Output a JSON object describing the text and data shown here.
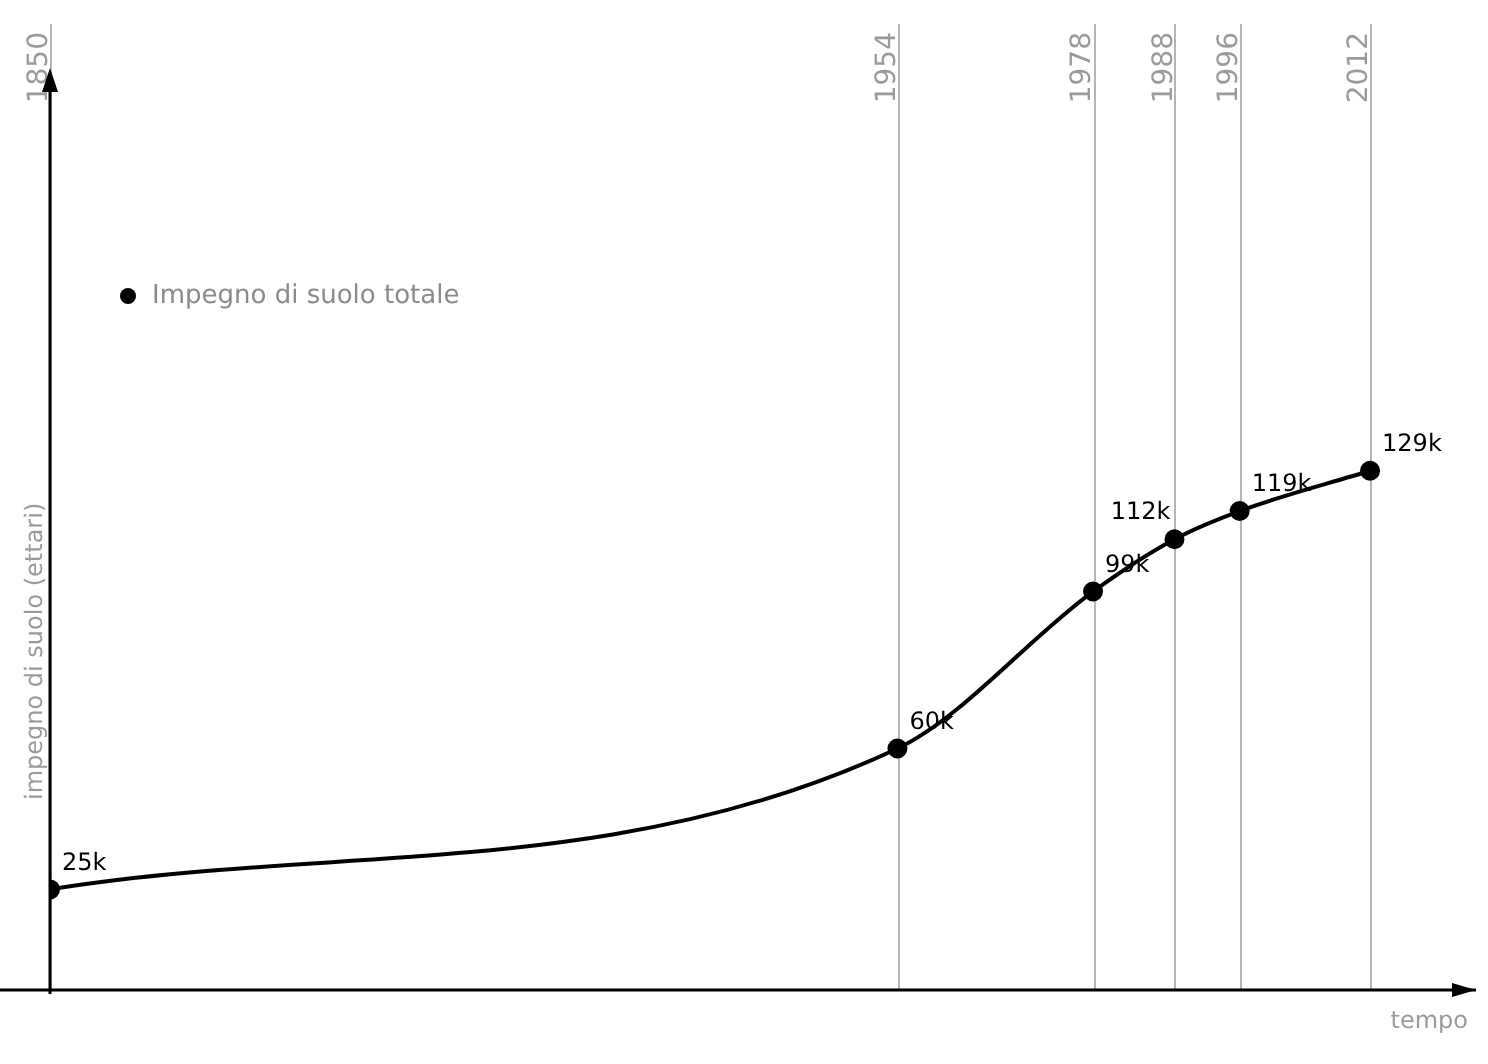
{
  "chart_data": {
    "type": "line",
    "xlabel": "tempo",
    "ylabel": "impegno di suolo (ettari)",
    "x": [
      1850,
      1954,
      1978,
      1988,
      1996,
      2012
    ],
    "series": [
      {
        "name": "Impegno di suolo totale",
        "color": "#000000",
        "values": [
          25000,
          60000,
          99000,
          112000,
          119000,
          129000
        ],
        "value_labels": [
          "25k",
          "60k",
          "99k",
          "112k",
          "119k",
          "129k"
        ]
      }
    ],
    "xlim": [
      1850,
      2025
    ],
    "xticks": [
      1850,
      1954,
      1978,
      1988,
      1996,
      2012
    ],
    "ylim": [
      0,
      240000
    ],
    "tick_labels": "x",
    "grid": "x",
    "legend": "top left",
    "marker": "circle",
    "line_style": "solid"
  }
}
